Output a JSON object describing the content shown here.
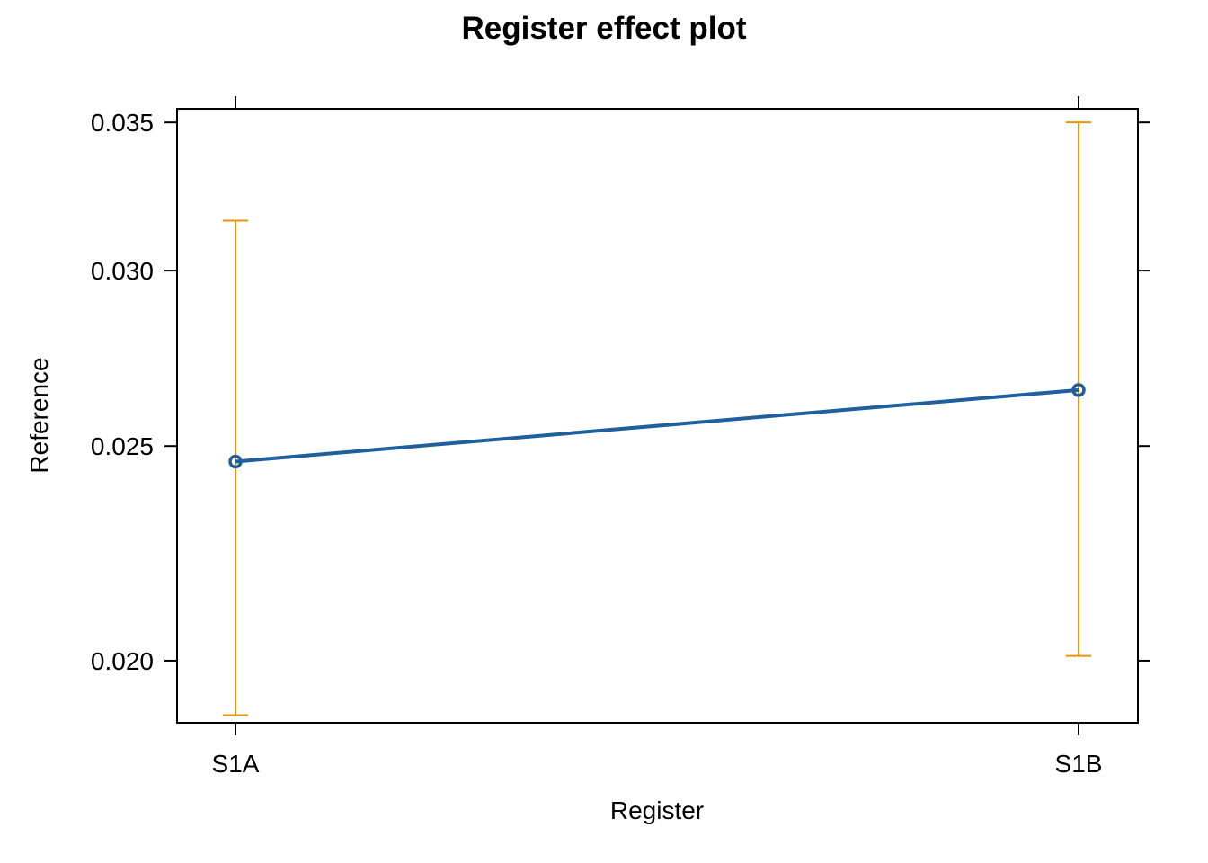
{
  "chart_data": {
    "type": "line",
    "title": "Register effect plot",
    "xlabel": "Register",
    "ylabel": "Reference",
    "categories": [
      "S1A",
      "S1B"
    ],
    "series": [
      {
        "values": [
          0.0246,
          0.0265
        ],
        "lower": [
          0.0189,
          0.0201
        ],
        "upper": [
          0.0316,
          0.035
        ]
      }
    ],
    "y_ticks": [
      0.02,
      0.025,
      0.03,
      0.035
    ],
    "y_tick_labels": [
      "0.020",
      "0.025",
      "0.030",
      "0.035"
    ],
    "y_scale": "log",
    "ylim": [
      0.01875,
      0.0355
    ],
    "grid": false,
    "colors": {
      "line": "#1f5f9e",
      "error_bars": "#e8940f",
      "axes": "#000000"
    }
  }
}
